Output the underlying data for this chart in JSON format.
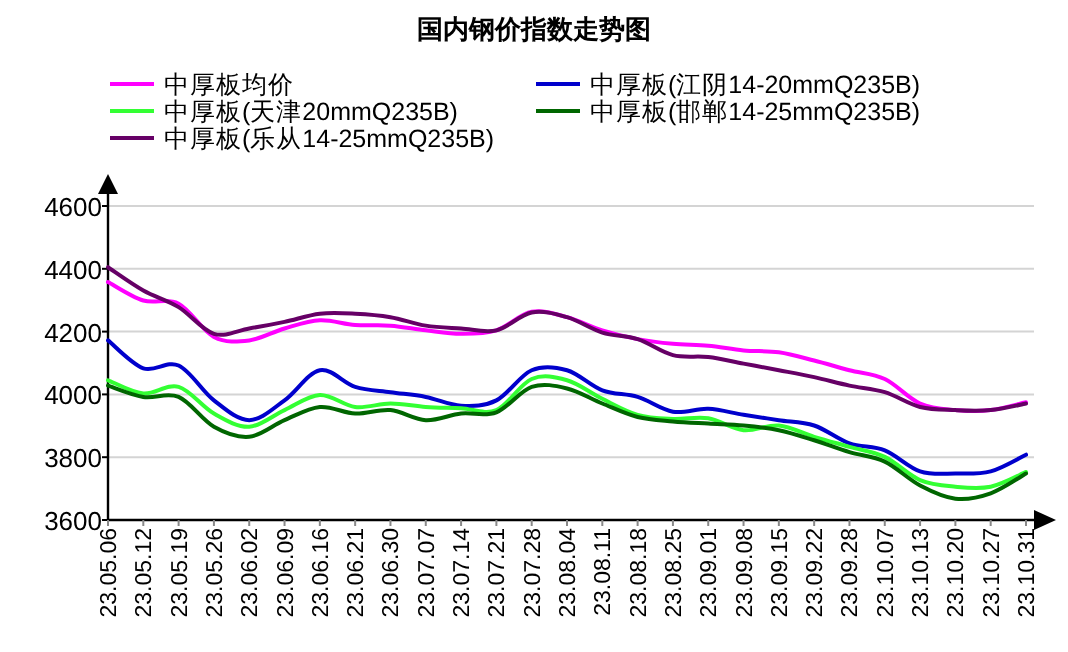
{
  "chart_data": {
    "type": "line",
    "title": "国内钢价指数走势图",
    "legend": "top",
    "grid": "y",
    "marker": "none",
    "line_style": "solid",
    "categories": [
      "23.05.06",
      "23.05.12",
      "23.05.19",
      "23.05.26",
      "23.06.02",
      "23.06.09",
      "23.06.16",
      "23.06.21",
      "23.06.30",
      "23.07.07",
      "23.07.14",
      "23.07.21",
      "23.07.28",
      "23.08.04",
      "23.08.11",
      "23.08.18",
      "23.08.25",
      "23.09.01",
      "23.09.08",
      "23.09.15",
      "23.09.22",
      "23.09.28",
      "23.10.07",
      "23.10.13",
      "23.10.20",
      "23.10.27",
      "23.10.31"
    ],
    "ylim": [
      3600,
      4600
    ],
    "yticks": [
      3600,
      3800,
      4000,
      4200,
      4400,
      4600
    ],
    "series": [
      {
        "name": "中厚板均价",
        "color": "#ff00ff",
        "values": [
          4358,
          4299,
          4289,
          4183,
          4172,
          4210,
          4236,
          4221,
          4219,
          4204,
          4193,
          4204,
          4263,
          4246,
          4204,
          4176,
          4161,
          4155,
          4140,
          4134,
          4108,
          4077,
          4049,
          3971,
          3950,
          3950,
          3975
        ]
      },
      {
        "name": "中厚板(江阴14-20mmQ235B)",
        "color": "#0000cc",
        "values": [
          4172,
          4083,
          4092,
          3981,
          3918,
          3981,
          4077,
          4024,
          4007,
          3992,
          3964,
          3981,
          4077,
          4077,
          4013,
          3992,
          3945,
          3954,
          3935,
          3918,
          3901,
          3844,
          3822,
          3755,
          3748,
          3755,
          3808
        ]
      },
      {
        "name": "中厚板(天津20mmQ235B)",
        "color": "#33ff33",
        "values": [
          4045,
          4003,
          4024,
          3939,
          3897,
          3950,
          3998,
          3960,
          3971,
          3960,
          3956,
          3950,
          4049,
          4045,
          3986,
          3935,
          3922,
          3924,
          3886,
          3901,
          3865,
          3833,
          3801,
          3727,
          3706,
          3706,
          3753
        ]
      },
      {
        "name": "中厚板(邯郸14-25mmQ235B)",
        "color": "#006600",
        "values": [
          4028,
          3992,
          3992,
          3897,
          3865,
          3918,
          3960,
          3939,
          3950,
          3918,
          3939,
          3943,
          4024,
          4019,
          3971,
          3928,
          3914,
          3907,
          3901,
          3886,
          3854,
          3816,
          3786,
          3710,
          3668,
          3685,
          3748
        ]
      },
      {
        "name": "中厚板(乐从14-25mmQ235B)",
        "color": "#660066",
        "values": [
          4405,
          4331,
          4278,
          4193,
          4210,
          4231,
          4257,
          4257,
          4246,
          4219,
          4210,
          4204,
          4261,
          4246,
          4197,
          4176,
          4125,
          4119,
          4098,
          4077,
          4055,
          4028,
          4007,
          3960,
          3950,
          3950,
          3971
        ]
      }
    ]
  }
}
